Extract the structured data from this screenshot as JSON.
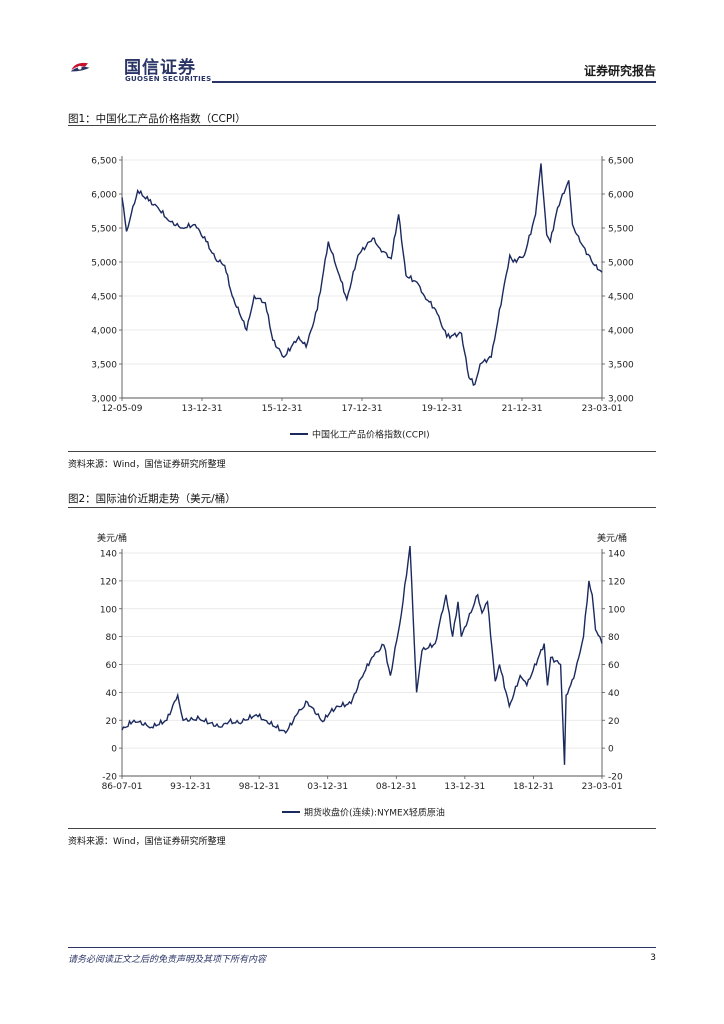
{
  "header": {
    "company_cn": "国信证券",
    "company_en": "GUOSEN SECURITIES",
    "report_type": "证券研究报告"
  },
  "figures": [
    {
      "title": "图1：中国化工产品价格指数（CCPI）",
      "source": "资料来源：Wind，国信证券研究所整理"
    },
    {
      "title": "图2：国际油价近期走势（美元/桶）",
      "source": "资料来源：Wind，国信证券研究所整理"
    }
  ],
  "chart_data": [
    {
      "type": "line",
      "title": "",
      "ylim": [
        3000,
        6500
      ],
      "yticks": [
        3000,
        3500,
        4000,
        4500,
        5000,
        5500,
        6000,
        6500
      ],
      "ytick_labels": [
        "3,000",
        "3,500",
        "4,000",
        "4,500",
        "5,000",
        "5,500",
        "6,000",
        "6,500"
      ],
      "xtick_labels": [
        "12-05-09",
        "13-12-31",
        "15-12-31",
        "17-12-31",
        "19-12-31",
        "21-12-31",
        "23-03-01"
      ],
      "grid": true,
      "legend_position": "bottom",
      "color": "#1b2a5e",
      "series": [
        {
          "name": "中国化工产品价格指数(CCPI)",
          "x": [
            "2012-05-09",
            "2012-06-15",
            "2012-09-15",
            "2012-12-15",
            "2013-03-01",
            "2013-06-01",
            "2013-09-15",
            "2013-12-31",
            "2014-04-01",
            "2014-06-15",
            "2014-09-01",
            "2014-11-01",
            "2014-12-31",
            "2015-03-01",
            "2015-05-01",
            "2015-08-01",
            "2015-10-01",
            "2015-12-31",
            "2016-03-01",
            "2016-05-01",
            "2016-07-01",
            "2016-10-01",
            "2016-12-31",
            "2017-04-01",
            "2017-06-01",
            "2017-09-01",
            "2017-12-31",
            "2018-03-01",
            "2018-06-01",
            "2018-08-01",
            "2018-10-01",
            "2018-12-31",
            "2019-03-01",
            "2019-06-01",
            "2019-09-01",
            "2019-12-31",
            "2020-03-01",
            "2020-04-20",
            "2020-06-01",
            "2020-09-01",
            "2020-12-31",
            "2021-02-01",
            "2021-03-01",
            "2021-06-01",
            "2021-09-01",
            "2021-10-15",
            "2021-12-01",
            "2021-12-31",
            "2022-03-01",
            "2022-06-01",
            "2022-07-01",
            "2022-09-01",
            "2022-12-31",
            "2023-03-01"
          ],
          "values": [
            5950,
            5450,
            6050,
            5900,
            5800,
            5600,
            5500,
            5550,
            5300,
            5050,
            4950,
            4500,
            4250,
            4000,
            4500,
            4400,
            3850,
            3600,
            3750,
            3900,
            3750,
            4300,
            5300,
            4800,
            4450,
            5100,
            5350,
            5200,
            5050,
            5700,
            4800,
            4700,
            4500,
            4300,
            3900,
            3950,
            3300,
            3200,
            3500,
            3600,
            4800,
            5100,
            5000,
            5100,
            5700,
            6450,
            5400,
            5300,
            5800,
            6200,
            5550,
            5300,
            4950,
            4850
          ]
        }
      ]
    },
    {
      "type": "line",
      "title": "",
      "ylabel_left": "美元/桶",
      "ylabel_right": "美元/桶",
      "ylim": [
        -20,
        140
      ],
      "yticks": [
        -20,
        0,
        20,
        40,
        60,
        80,
        100,
        120,
        140
      ],
      "ytick_labels": [
        "-20",
        "0",
        "20",
        "40",
        "60",
        "80",
        "100",
        "120",
        "140"
      ],
      "xtick_labels": [
        "86-07-01",
        "93-12-31",
        "98-12-31",
        "03-12-31",
        "08-12-31",
        "13-12-31",
        "18-12-31",
        "23-03-01"
      ],
      "grid": true,
      "legend_position": "bottom",
      "color": "#1b2a5e",
      "series": [
        {
          "name": "期货收盘价(连续):NYMEX轻质原油",
          "x": [
            "1986-07-01",
            "1987-06-01",
            "1988-10-01",
            "1989-12-01",
            "1990-10-01",
            "1991-03-01",
            "1992-06-01",
            "1993-12-31",
            "1994-09-01",
            "1995-06-01",
            "1996-10-01",
            "1997-06-01",
            "1998-12-31",
            "1999-12-01",
            "2000-09-01",
            "2001-11-01",
            "2002-06-01",
            "2002-12-31",
            "2003-12-31",
            "2004-10-01",
            "2005-08-01",
            "2006-07-01",
            "2007-01-01",
            "2007-11-01",
            "2008-07-01",
            "2008-12-31",
            "2009-06-01",
            "2010-06-01",
            "2011-04-01",
            "2011-10-01",
            "2012-03-01",
            "2012-06-01",
            "2013-09-01",
            "2013-12-31",
            "2014-06-01",
            "2015-01-01",
            "2015-05-01",
            "2016-02-01",
            "2016-12-01",
            "2017-06-01",
            "2018-10-01",
            "2018-12-31",
            "2019-04-01",
            "2020-01-01",
            "2020-04-20",
            "2020-06-01",
            "2021-01-01",
            "2021-10-01",
            "2022-03-01",
            "2022-06-01",
            "2022-09-01",
            "2022-12-31",
            "2023-03-01"
          ],
          "values": [
            13,
            20,
            15,
            20,
            38,
            20,
            21,
            15,
            19,
            18,
            24,
            20,
            11,
            25,
            33,
            19,
            26,
            30,
            32,
            50,
            65,
            74,
            52,
            96,
            145,
            40,
            70,
            75,
            110,
            80,
            105,
            80,
            110,
            97,
            105,
            48,
            60,
            30,
            52,
            45,
            75,
            45,
            65,
            60,
            -12,
            38,
            50,
            80,
            120,
            110,
            85,
            80,
            75
          ]
        }
      ]
    }
  ],
  "footer": {
    "disclaimer": "请务必阅读正文之后的免责声明及其项下所有内容",
    "page_number": "3"
  }
}
